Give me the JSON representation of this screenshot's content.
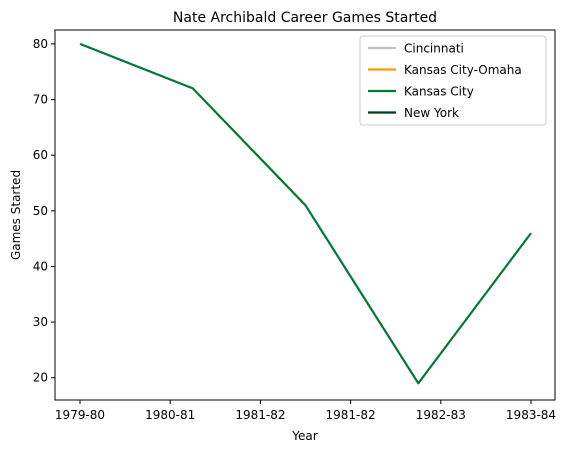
{
  "chart_data": {
    "type": "line",
    "title": "Nate Archibald Career Games Started",
    "xlabel": "Year",
    "ylabel": "Games Started",
    "x_tick_labels": [
      "1979-80",
      "1980-81",
      "1981-82",
      "1981-82",
      "1982-83",
      "1983-84"
    ],
    "ylim": [
      16,
      82.5
    ],
    "y_ticks": [
      20,
      30,
      40,
      50,
      60,
      70,
      80
    ],
    "grid": false,
    "legend_position": "top-right",
    "series": [
      {
        "name": "Cincinnati",
        "color": "#c0c0c0",
        "values": []
      },
      {
        "name": "Kansas City-Omaha",
        "color": "#ff9900",
        "values": []
      },
      {
        "name": "Kansas City",
        "color": "#007a33",
        "values": [
          [
            0,
            80
          ],
          [
            1,
            72
          ],
          [
            2,
            51
          ],
          [
            3,
            19
          ],
          [
            4,
            46
          ]
        ]
      },
      {
        "name": "New York",
        "color": "#003d1a",
        "values": []
      }
    ]
  }
}
